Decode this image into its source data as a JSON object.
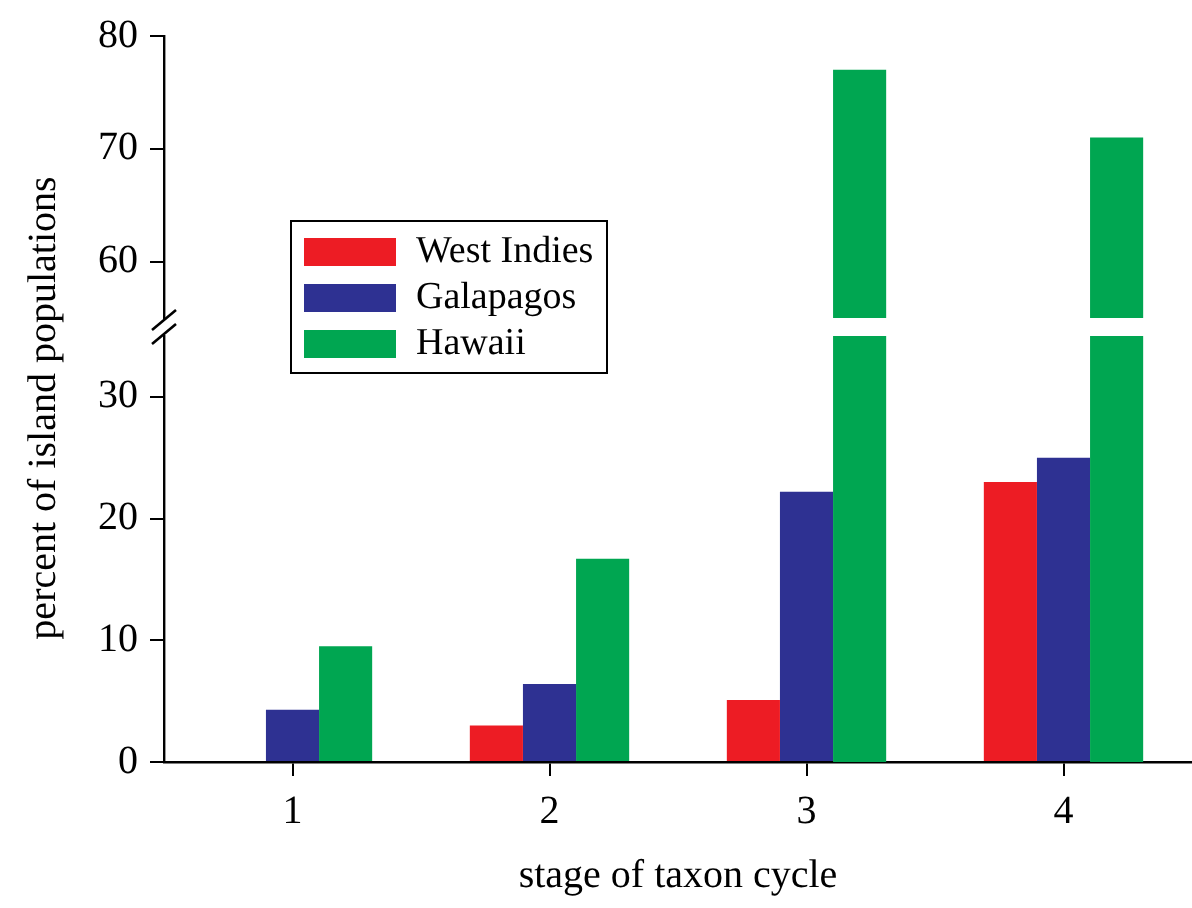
{
  "chart_data": [
    {
      "type": "bar",
      "categories": [
        "1",
        "2",
        "3",
        "4"
      ],
      "series": [
        {
          "color": "#ed1c24",
          "values": [
            null,
            null,
            null,
            null
          ]
        },
        {
          "color": "#2e3192",
          "values": [
            null,
            null,
            null,
            null
          ]
        },
        {
          "color": "#00a651",
          "values": [
            null,
            null,
            77,
            71
          ]
        }
      ],
      "ylim": [
        55,
        80
      ],
      "yticks": [
        60,
        70,
        80
      ],
      "tick_labels": "y",
      "grid": false
    },
    {
      "type": "bar",
      "xlabel": "stage of taxon cycle",
      "ylabel": "percent of island populations",
      "categories": [
        "1",
        "2",
        "3",
        "4"
      ],
      "series": [
        {
          "name": "West Indies",
          "color": "#ed1c24",
          "values": [
            0,
            3.0,
            5.1,
            23.0
          ]
        },
        {
          "name": "Galapagos",
          "color": "#2e3192",
          "values": [
            4.3,
            6.4,
            22.2,
            25.0
          ]
        },
        {
          "name": "Hawaii",
          "color": "#00a651",
          "values": [
            9.5,
            16.7,
            null,
            null
          ]
        }
      ],
      "ylim": [
        0,
        35
      ],
      "yticks": [
        0,
        10,
        20,
        30
      ],
      "legend": "left",
      "grid": false
    }
  ]
}
